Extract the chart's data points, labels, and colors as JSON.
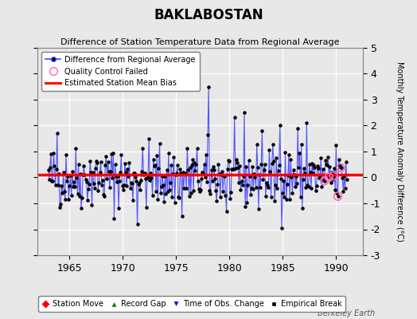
{
  "title": "BAKLABOSTAN",
  "subtitle": "Difference of Station Temperature Data from Regional Average",
  "ylabel": "Monthly Temperature Anomaly Difference (°C)",
  "xlabel_years": [
    1965,
    1970,
    1975,
    1980,
    1985,
    1990
  ],
  "ylim": [
    -3,
    5
  ],
  "yticks": [
    -3,
    -2,
    -1,
    0,
    1,
    2,
    3,
    4,
    5
  ],
  "xlim_start": 1962.0,
  "xlim_end": 1992.5,
  "bias_value": 0.1,
  "line_color": "#4444ff",
  "dot_color": "#000000",
  "bias_color": "#ff0000",
  "qc_color": "#ff69b4",
  "background_color": "#e8e8e8",
  "grid_color": "#ffffff",
  "seed": 42,
  "n_points": 336,
  "watermark": "Berkeley Earth",
  "qc_indices": [
    310,
    315,
    320,
    325,
    328
  ],
  "spike_indices": [
    180,
    220,
    240,
    260,
    280,
    290,
    10,
    100,
    150,
    200
  ],
  "spike_values": [
    3.5,
    2.5,
    1.8,
    2.0,
    1.9,
    2.1,
    1.7,
    -1.8,
    -1.5,
    -1.3
  ]
}
